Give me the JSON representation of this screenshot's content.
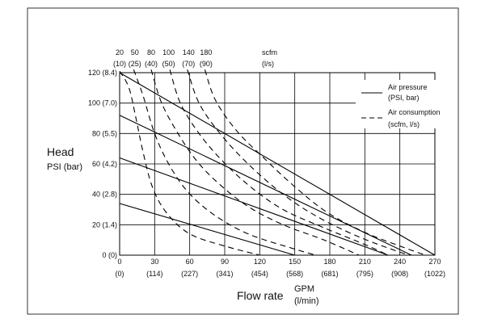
{
  "chart_data": {
    "type": "line",
    "y_axis": {
      "title": "Head",
      "subtitle": "PSI (bar)",
      "range": [
        0,
        120
      ],
      "ticks": [
        {
          "value": 0,
          "label": "0 (0)"
        },
        {
          "value": 20,
          "label": "20 (1.4)"
        },
        {
          "value": 40,
          "label": "40 (2.8)"
        },
        {
          "value": 60,
          "label": "60 (4.2)"
        },
        {
          "value": 80,
          "label": "80 (5.5)"
        },
        {
          "value": 100,
          "label": "100 (7.0)"
        },
        {
          "value": 120,
          "label": "120 (8.4)"
        }
      ]
    },
    "x_axis": {
      "title": "Flow rate",
      "unit_top": "GPM",
      "unit_bottom": "(l/min)",
      "range": [
        0,
        270
      ],
      "ticks": [
        {
          "value": 0,
          "gpm": "0",
          "lpm": "(0)"
        },
        {
          "value": 30,
          "gpm": "30",
          "lpm": "(114)"
        },
        {
          "value": 60,
          "gpm": "60",
          "lpm": "(227)"
        },
        {
          "value": 90,
          "gpm": "90",
          "lpm": "(341)"
        },
        {
          "value": 120,
          "gpm": "120",
          "lpm": "(454)"
        },
        {
          "value": 150,
          "gpm": "150",
          "lpm": "(568)"
        },
        {
          "value": 180,
          "gpm": "180",
          "lpm": "(681)"
        },
        {
          "value": 210,
          "gpm": "210",
          "lpm": "(795)"
        },
        {
          "value": 240,
          "gpm": "240",
          "lpm": "(908)"
        },
        {
          "value": 270,
          "gpm": "270",
          "lpm": "(1022)"
        }
      ]
    },
    "top_axis": {
      "unit_top": "scfm",
      "unit_bottom": "(l/s)",
      "labels": [
        {
          "scfm": "20",
          "ls": "(10)",
          "at_gpm": 0
        },
        {
          "scfm": "50",
          "ls": "(25)",
          "at_gpm": 13
        },
        {
          "scfm": "80",
          "ls": "(40)",
          "at_gpm": 27
        },
        {
          "scfm": "100",
          "ls": "(50)",
          "at_gpm": 42
        },
        {
          "scfm": "140",
          "ls": "(70)",
          "at_gpm": 59
        },
        {
          "scfm": "180",
          "ls": "(90)",
          "at_gpm": 74
        }
      ]
    },
    "legend": {
      "position": "top-right",
      "items": [
        {
          "label_line1": "Air pressure",
          "label_line2": "(PSI, bar)",
          "style": "solid"
        },
        {
          "label_line1": "Air consumption",
          "label_line2": "(scfm, l/s)",
          "style": "dashed"
        }
      ]
    },
    "grid": true,
    "series": [
      {
        "style": "solid",
        "points": [
          [
            0,
            120
          ],
          [
            270,
            0
          ]
        ]
      },
      {
        "style": "solid",
        "points": [
          [
            0,
            92
          ],
          [
            250,
            0
          ]
        ]
      },
      {
        "style": "solid",
        "points": [
          [
            0,
            64
          ],
          [
            230,
            0
          ]
        ]
      },
      {
        "style": "solid",
        "points": [
          [
            0,
            34
          ],
          [
            150,
            0
          ]
        ]
      },
      {
        "style": "dashed",
        "points": [
          [
            0,
            121
          ],
          [
            8,
            110
          ],
          [
            14,
            90
          ],
          [
            20,
            68
          ],
          [
            28,
            45
          ],
          [
            40,
            28
          ],
          [
            60,
            14
          ],
          [
            90,
            6
          ],
          [
            120,
            0
          ]
        ]
      },
      {
        "style": "dashed",
        "points": [
          [
            12,
            122
          ],
          [
            20,
            105
          ],
          [
            30,
            80
          ],
          [
            42,
            60
          ],
          [
            58,
            42
          ],
          [
            80,
            27
          ],
          [
            110,
            14
          ],
          [
            150,
            4
          ],
          [
            168,
            0
          ]
        ]
      },
      {
        "style": "dashed",
        "points": [
          [
            27,
            122
          ],
          [
            36,
            100
          ],
          [
            50,
            80
          ],
          [
            66,
            62
          ],
          [
            85,
            47
          ],
          [
            110,
            32
          ],
          [
            140,
            20
          ],
          [
            175,
            10
          ],
          [
            205,
            0
          ]
        ]
      },
      {
        "style": "dashed",
        "points": [
          [
            43,
            122
          ],
          [
            52,
            100
          ],
          [
            68,
            80
          ],
          [
            88,
            62
          ],
          [
            112,
            45
          ],
          [
            140,
            30
          ],
          [
            175,
            18
          ],
          [
            210,
            7
          ],
          [
            230,
            0
          ]
        ]
      },
      {
        "style": "dashed",
        "points": [
          [
            58,
            122
          ],
          [
            68,
            100
          ],
          [
            86,
            80
          ],
          [
            110,
            60
          ],
          [
            140,
            40
          ],
          [
            170,
            25
          ],
          [
            205,
            12
          ],
          [
            240,
            2
          ],
          [
            250,
            0
          ]
        ]
      },
      {
        "style": "dashed",
        "points": [
          [
            73,
            122
          ],
          [
            82,
            102
          ],
          [
            100,
            82
          ],
          [
            122,
            65
          ],
          [
            150,
            45
          ],
          [
            178,
            28
          ],
          [
            210,
            15
          ],
          [
            240,
            6
          ],
          [
            262,
            0
          ]
        ]
      }
    ]
  }
}
